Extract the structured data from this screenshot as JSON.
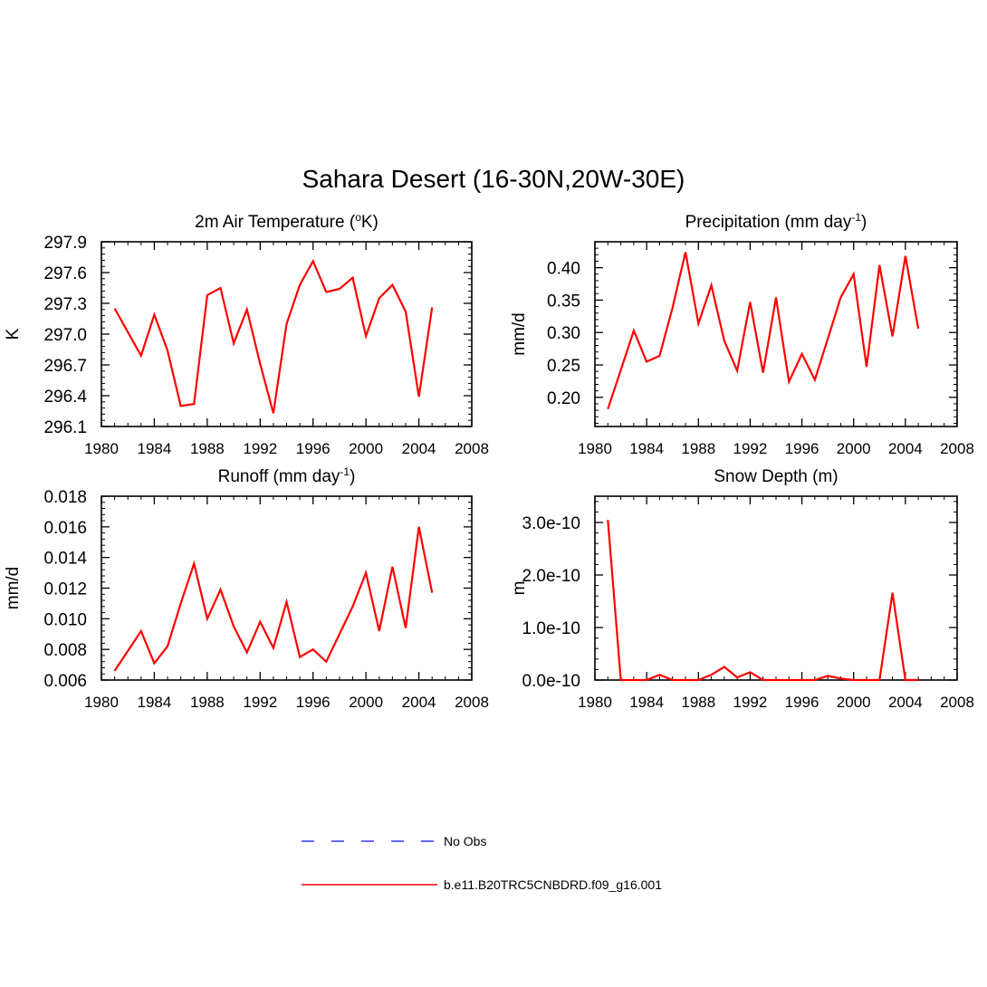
{
  "figure": {
    "title": "Sahara Desert (16-30N,20W-30E)"
  },
  "legend": {
    "placement": "bottom-center",
    "entries": [
      {
        "label": "No Obs",
        "color": "#3333ff",
        "dash": "dashed"
      },
      {
        "label": "b.e11.B20TRC5CNBDRD.f09_g16.001",
        "color": "#ff0000",
        "dash": "solid"
      }
    ]
  },
  "chart_data": [
    {
      "type": "line",
      "title_parts": [
        "2m Air Temperature (",
        "o",
        "K)"
      ],
      "ylabel": "K",
      "xlim": [
        1980,
        2008
      ],
      "ylim": [
        296.1,
        297.9
      ],
      "xticks": [
        1980,
        1984,
        1988,
        1992,
        1996,
        2000,
        2004,
        2008
      ],
      "yticks": [
        296.1,
        296.4,
        296.7,
        297.0,
        297.3,
        297.6,
        297.9
      ],
      "ytick_labels": [
        "296.1",
        "296.4",
        "296.7",
        "297.0",
        "297.3",
        "297.6",
        "297.9"
      ],
      "series": [
        {
          "color": "#ff0000",
          "x": [
            1981,
            1982,
            1983,
            1984,
            1985,
            1986,
            1987,
            1988,
            1989,
            1990,
            1991,
            1992,
            1993,
            1994,
            1995,
            1996,
            1997,
            1998,
            1999,
            2000,
            2001,
            2002,
            2003,
            2004,
            2005
          ],
          "y": [
            297.25,
            297.02,
            296.79,
            297.19,
            296.84,
            296.3,
            296.32,
            297.38,
            297.45,
            296.91,
            297.24,
            296.71,
            296.23,
            297.1,
            297.48,
            297.71,
            297.41,
            297.44,
            297.55,
            296.98,
            297.35,
            297.48,
            297.22,
            296.39,
            297.26
          ]
        }
      ]
    },
    {
      "type": "line",
      "title_parts": [
        "Precipitation (mm day",
        "-1",
        ")"
      ],
      "ylabel": "mm/d",
      "xlim": [
        1980,
        2008
      ],
      "ylim": [
        0.155,
        0.44
      ],
      "xticks": [
        1980,
        1984,
        1988,
        1992,
        1996,
        2000,
        2004,
        2008
      ],
      "yticks": [
        0.2,
        0.25,
        0.3,
        0.35,
        0.4
      ],
      "ytick_labels": [
        "0.20",
        "0.25",
        "0.30",
        "0.35",
        "0.40"
      ],
      "series": [
        {
          "color": "#ff0000",
          "x": [
            1981,
            1982,
            1983,
            1984,
            1985,
            1986,
            1987,
            1988,
            1989,
            1990,
            1991,
            1992,
            1993,
            1994,
            1995,
            1996,
            1997,
            1998,
            1999,
            2000,
            2001,
            2002,
            2003,
            2004,
            2005
          ],
          "y": [
            0.182,
            0.242,
            0.303,
            0.255,
            0.264,
            0.338,
            0.424,
            0.314,
            0.373,
            0.287,
            0.241,
            0.347,
            0.238,
            0.354,
            0.224,
            0.267,
            0.227,
            0.29,
            0.354,
            0.39,
            0.247,
            0.404,
            0.294,
            0.418,
            0.306
          ]
        }
      ]
    },
    {
      "type": "line",
      "title_parts": [
        "Runoff (mm day",
        "-1",
        ")"
      ],
      "ylabel": "mm/d",
      "xlim": [
        1980,
        2008
      ],
      "ylim": [
        0.006,
        0.018
      ],
      "xticks": [
        1980,
        1984,
        1988,
        1992,
        1996,
        2000,
        2004,
        2008
      ],
      "yticks": [
        0.006,
        0.008,
        0.01,
        0.012,
        0.014,
        0.016,
        0.018
      ],
      "ytick_labels": [
        "0.006",
        "0.008",
        "0.010",
        "0.012",
        "0.014",
        "0.016",
        "0.018"
      ],
      "series": [
        {
          "color": "#ff0000",
          "x": [
            1981,
            1982,
            1983,
            1984,
            1985,
            1986,
            1987,
            1988,
            1989,
            1990,
            1991,
            1992,
            1993,
            1994,
            1995,
            1996,
            1997,
            1998,
            1999,
            2000,
            2001,
            2002,
            2003,
            2004,
            2005
          ],
          "y": [
            0.0066,
            0.0079,
            0.0092,
            0.0071,
            0.0082,
            0.011,
            0.0136,
            0.01,
            0.0119,
            0.0095,
            0.0078,
            0.0098,
            0.0081,
            0.0111,
            0.0075,
            0.008,
            0.0072,
            0.009,
            0.0108,
            0.013,
            0.0092,
            0.0134,
            0.0094,
            0.016,
            0.0117
          ]
        }
      ]
    },
    {
      "type": "line",
      "title_parts": [
        "Snow Depth (m)"
      ],
      "ylabel": "m",
      "xlim": [
        1980,
        2008
      ],
      "ylim": [
        0,
        3.5e-10
      ],
      "xticks": [
        1980,
        1984,
        1988,
        1992,
        1996,
        2000,
        2004,
        2008
      ],
      "yticks": [
        0,
        1e-10,
        2e-10,
        3e-10
      ],
      "ytick_labels": [
        "0.0e-10",
        "1.0e-10",
        "2.0e-10",
        "3.0e-10"
      ],
      "series": [
        {
          "color": "#ff0000",
          "x": [
            1981,
            1982,
            1983,
            1984,
            1985,
            1986,
            1987,
            1988,
            1989,
            1990,
            1991,
            1992,
            1993,
            1994,
            1995,
            1996,
            1997,
            1998,
            1999,
            2000,
            2001,
            2002,
            2003,
            2004,
            2005
          ],
          "y": [
            3.05e-10,
            0,
            0,
            0,
            1e-11,
            0,
            0,
            0,
            1e-11,
            2.5e-11,
            5e-12,
            1.5e-11,
            0,
            0,
            0,
            0,
            0,
            8e-12,
            3e-12,
            0,
            0,
            0,
            1.66e-10,
            0,
            0
          ]
        }
      ]
    }
  ]
}
